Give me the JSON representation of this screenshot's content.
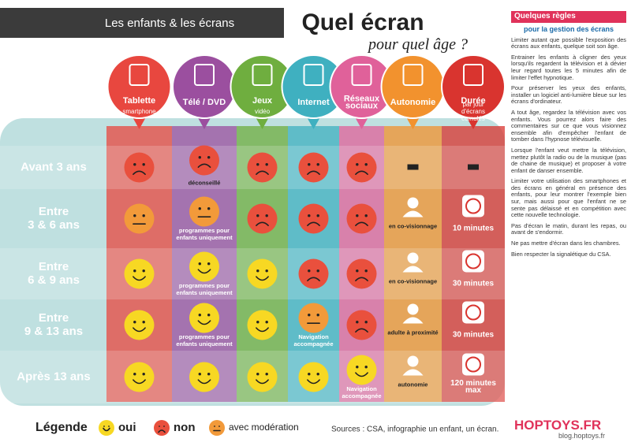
{
  "header": {
    "kicker": "Les enfants & les écrans",
    "title": "Quel écran",
    "subtitle": "pour quel âge ?"
  },
  "table": {
    "columns": [
      {
        "title": "Tablette",
        "sub": "smartphone",
        "color": "#e8473f"
      },
      {
        "title": "Télé / DVD",
        "color": "#9b4f9f"
      },
      {
        "title": "Jeux",
        "sub": "vidéo",
        "color": "#6fae3f"
      },
      {
        "title": "Internet",
        "color": "#3fb0c0"
      },
      {
        "title": "Réseaux sociaux",
        "color": "#e0619a"
      },
      {
        "title": "Autonomie",
        "color": "#f2922e"
      },
      {
        "title": "Durée",
        "sub": "par jour d'écrans cumulés",
        "color": "#d9342f"
      }
    ],
    "rows": [
      {
        "label": [
          "Avant 3 ans"
        ],
        "cells": [
          {
            "face": "non"
          },
          {
            "face": "non",
            "caption": "déconseillé"
          },
          {
            "face": "non"
          },
          {
            "face": "non"
          },
          {
            "face": "non"
          },
          null,
          null
        ]
      },
      {
        "label": [
          "Entre",
          "3 & 6 ans"
        ],
        "cells": [
          {
            "face": "avec modération"
          },
          {
            "face": "avec modération",
            "caption": "programmes pour enfants uniquement"
          },
          {
            "face": "non"
          },
          {
            "face": "non"
          },
          {
            "face": "non"
          },
          {
            "caption": "en co-visionnage"
          },
          {
            "caption": "10 minutes"
          }
        ]
      },
      {
        "label": [
          "Entre",
          "6 & 9 ans"
        ],
        "cells": [
          {
            "face": "oui"
          },
          {
            "face": "oui",
            "caption": "programmes pour enfants uniquement"
          },
          {
            "face": "oui"
          },
          {
            "face": "non"
          },
          {
            "face": "non"
          },
          {
            "caption": "en co-visionnage"
          },
          {
            "caption": "30 minutes"
          }
        ]
      },
      {
        "label": [
          "Entre",
          "9 & 13 ans"
        ],
        "cells": [
          {
            "face": "oui"
          },
          {
            "face": "oui",
            "caption": "programmes pour enfants uniquement"
          },
          {
            "face": "oui"
          },
          {
            "face": "avec modération",
            "caption": "Navigation accompagnée"
          },
          {
            "face": "non"
          },
          {
            "caption": "adulte à proximité"
          },
          {
            "caption": "30 minutes"
          }
        ]
      },
      {
        "label": [
          "Après 13 ans"
        ],
        "cells": [
          {
            "face": "oui"
          },
          {
            "face": "oui"
          },
          {
            "face": "oui"
          },
          {
            "face": "oui"
          },
          {
            "face": "oui",
            "caption": "Navigation accompagnée"
          },
          {
            "caption": "autonomie"
          },
          {
            "caption": "120 minutes max"
          }
        ]
      }
    ]
  },
  "legend": {
    "title": "Légende",
    "items": [
      "oui",
      "non",
      "avec modération"
    ]
  },
  "sources": "Sources : CSA, infographie un enfant, un écran.",
  "sidebar": {
    "title": "Quelques règles",
    "subtitle": "pour la gestion des écrans",
    "paragraphs": [
      "Limiter autant que possible l'exposition des écrans aux enfants, quelque soit son âge.",
      "Entrainer les enfants à cligner des yeux lorsqu'ils regardent la télévision et à dévier leur regard toutes les 5 minutes afin de limiter l'effet hypnotique.",
      "Pour préserver les yeux des enfants, installer un logiciel anti-lumière bleue sur les écrans d'ordinateur.",
      "A tout âge, regardez la télévision avec vos enfants. Vous pourrez alors faire des commentaires sur ce que vous visionnez ensemble afin d'empêcher l'enfant de tomber dans l'hypnose télévisuelle.",
      "Lorsque l'enfant veut mettre la télévision, mettez plutôt la radio ou de la musique (pas de chaine de musique) et proposer à votre enfant de danser ensemble.",
      "Limiter votre utilisation des smartphones et des écrans en général en présence des enfants, pour leur montrer l'exemple bien sur, mais aussi pour que l'enfant ne se sente pas délaissé et en compétition avec cette nouvelle technologie.",
      "Pas d'écran le matin, durant les repas, ou avant de s'endormir.",
      "Ne pas mettre d'écran dans les chambres.",
      "Bien respecter la signalétique du CSA."
    ]
  },
  "brand": "HOPTOYS.FR",
  "url": "blog.hoptoys.fr"
}
